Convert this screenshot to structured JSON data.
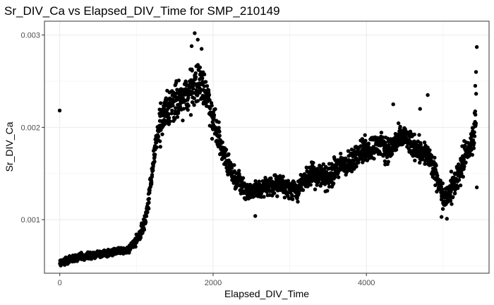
{
  "chart_data": {
    "type": "scatter",
    "title": "Sr_DIV_Ca vs Elapsed_DIV_Time for SMP_210149",
    "xlabel": "Elapsed_DIV_Time",
    "ylabel": "Sr_DIV_Ca",
    "xlim": [
      -200,
      5600
    ],
    "ylim": [
      0.00042,
      0.00315
    ],
    "x_ticks": [
      {
        "value": 0,
        "label": "0"
      },
      {
        "value": 2000,
        "label": "2000"
      },
      {
        "value": 4000,
        "label": "4000"
      }
    ],
    "y_ticks": [
      {
        "value": 0.001,
        "label": "0.001"
      },
      {
        "value": 0.002,
        "label": "0.002"
      },
      {
        "value": 0.003,
        "label": "0.003"
      }
    ],
    "grid": true,
    "point_color": "#000000",
    "trend": [
      [
        0,
        0.00054
      ],
      [
        100,
        0.00056
      ],
      [
        200,
        0.00058
      ],
      [
        300,
        0.0006
      ],
      [
        400,
        0.00061
      ],
      [
        500,
        0.00063
      ],
      [
        600,
        0.00064
      ],
      [
        700,
        0.00065
      ],
      [
        800,
        0.00066
      ],
      [
        900,
        0.00068
      ],
      [
        1000,
        0.00078
      ],
      [
        1050,
        0.00085
      ],
      [
        1100,
        0.00095
      ],
      [
        1150,
        0.00115
      ],
      [
        1200,
        0.0015
      ],
      [
        1250,
        0.0018
      ],
      [
        1300,
        0.002
      ],
      [
        1400,
        0.0022
      ],
      [
        1500,
        0.00225
      ],
      [
        1600,
        0.0023
      ],
      [
        1700,
        0.0024
      ],
      [
        1800,
        0.0025
      ],
      [
        1900,
        0.0024
      ],
      [
        2000,
        0.0021
      ],
      [
        2100,
        0.0018
      ],
      [
        2200,
        0.0016
      ],
      [
        2300,
        0.00145
      ],
      [
        2400,
        0.00135
      ],
      [
        2500,
        0.0013
      ],
      [
        2600,
        0.00133
      ],
      [
        2700,
        0.00136
      ],
      [
        2800,
        0.00138
      ],
      [
        2900,
        0.00138
      ],
      [
        3000,
        0.00133
      ],
      [
        3100,
        0.00132
      ],
      [
        3200,
        0.00145
      ],
      [
        3300,
        0.0015
      ],
      [
        3400,
        0.00148
      ],
      [
        3500,
        0.00145
      ],
      [
        3600,
        0.00155
      ],
      [
        3700,
        0.0016
      ],
      [
        3800,
        0.0016
      ],
      [
        3900,
        0.00175
      ],
      [
        4000,
        0.00175
      ],
      [
        4100,
        0.0018
      ],
      [
        4200,
        0.0018
      ],
      [
        4300,
        0.00175
      ],
      [
        4400,
        0.00185
      ],
      [
        4500,
        0.0019
      ],
      [
        4600,
        0.0018
      ],
      [
        4700,
        0.00175
      ],
      [
        4800,
        0.0017
      ],
      [
        4900,
        0.0015
      ],
      [
        5000,
        0.00125
      ],
      [
        5100,
        0.0013
      ],
      [
        5200,
        0.0015
      ],
      [
        5300,
        0.0017
      ],
      [
        5400,
        0.0019
      ],
      [
        5430,
        0.0022
      ]
    ],
    "outliers": [
      [
        1760,
        0.00302
      ],
      [
        1800,
        0.00295
      ],
      [
        1850,
        0.00285
      ],
      [
        1720,
        0.00288
      ],
      [
        5440,
        0.00287
      ],
      [
        5430,
        0.0026
      ],
      [
        5420,
        0.00245
      ],
      [
        5440,
        0.00135
      ],
      [
        4800,
        0.00235
      ],
      [
        4350,
        0.00225
      ],
      [
        4700,
        0.0022
      ],
      [
        2550,
        0.00104
      ],
      [
        5050,
        0.00101
      ],
      [
        4980,
        0.00103
      ]
    ]
  }
}
